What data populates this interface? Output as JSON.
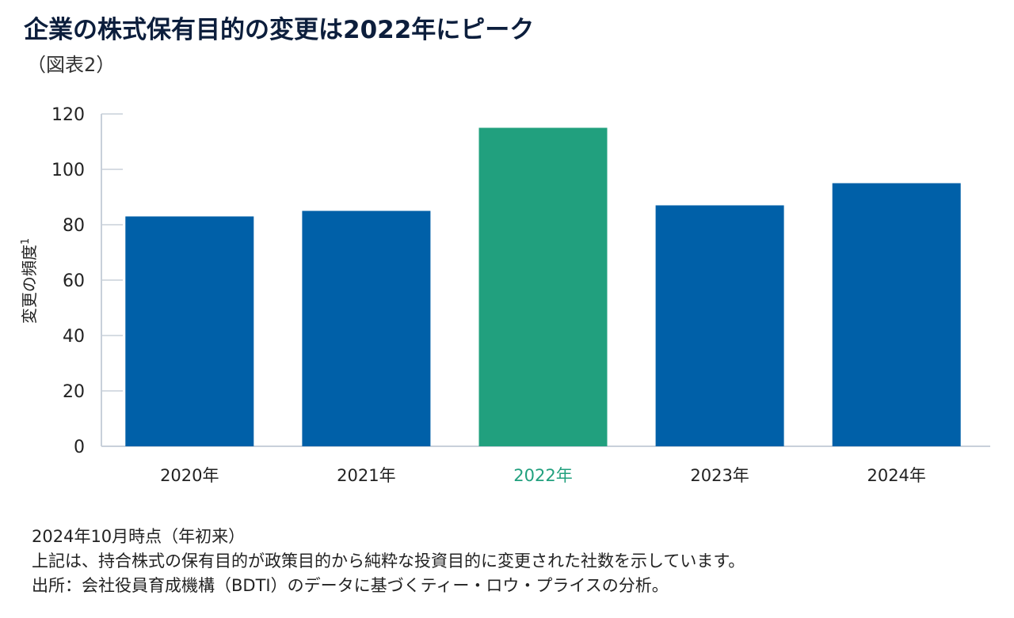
{
  "title": "企業の株式保有目的の変更は2022年にピーク",
  "subtitle": "（図表2）",
  "chart_data": {
    "type": "bar",
    "categories": [
      "2020年",
      "2021年",
      "2022年",
      "2023年",
      "2024年"
    ],
    "values": [
      83,
      85,
      115,
      87,
      95
    ],
    "highlight_category": "2022年",
    "ylabel": "変更の頻度",
    "ylabel_superscript": "1",
    "ylim": [
      0,
      120
    ],
    "yticks": [
      0,
      20,
      40,
      60,
      80,
      100,
      120
    ],
    "grid": false,
    "colors": {
      "default": "#0060A8",
      "highlight": "#21A07E",
      "axis": "#c8d0da"
    }
  },
  "notes": [
    "2024年10月時点（年初来）",
    "上記は、持合株式の保有目的が政策目的から純粋な投資目的に変更された社数を示しています。",
    "出所：会社役員育成機構（BDTI）のデータに基づくティー・ロウ・プライスの分析。"
  ]
}
